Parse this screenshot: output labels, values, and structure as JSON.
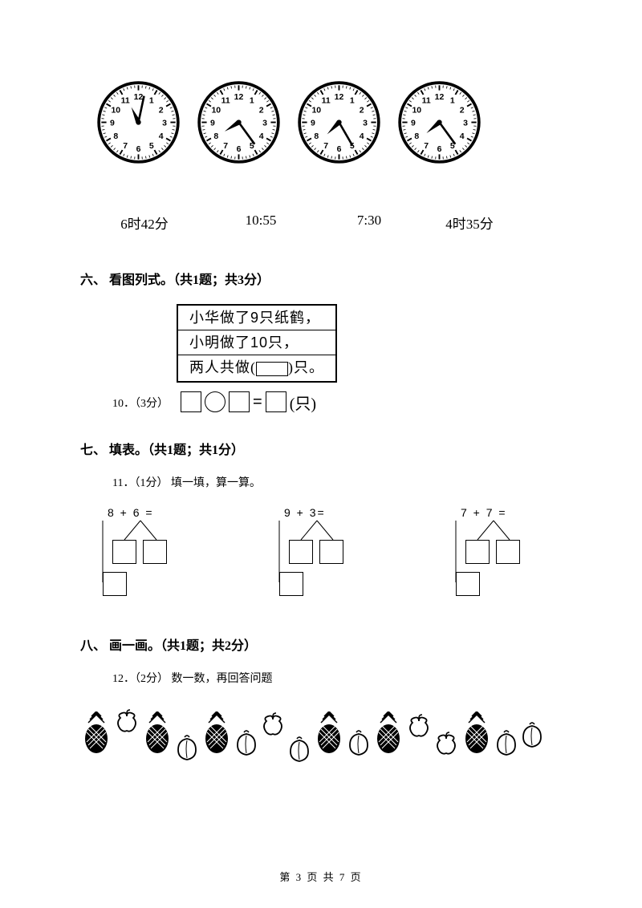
{
  "clocks": {
    "faces": [
      {
        "hour_angle": 335,
        "minute_angle": 12
      },
      {
        "hour_angle": 237,
        "minute_angle": 144
      },
      {
        "hour_angle": 225,
        "minute_angle": 150
      },
      {
        "hour_angle": 230,
        "minute_angle": 144
      }
    ],
    "times": [
      "6时42分",
      "10:55",
      "7:30",
      "4时35分"
    ],
    "time_positions": [
      50,
      160,
      295,
      415
    ],
    "face_bg": "#ffffff",
    "stroke": "#000000",
    "numerals": [
      "12",
      "1",
      "2",
      "3",
      "4",
      "5",
      "6",
      "7",
      "8",
      "9",
      "10",
      "11"
    ]
  },
  "section6": {
    "heading": "六、 看图列式。（共1题；共3分）",
    "q10_label": "10．（3分）",
    "box_lines": {
      "l1_a": "小华做了",
      "l1_b": "只纸鹤，",
      "l1_num": "9",
      "l2_a": "小明做了",
      "l2_b": "只，",
      "l2_num": "10",
      "l3_a": "两人共做(",
      "l3_b": ")只。"
    },
    "eq_tail": "(只)"
  },
  "section7": {
    "heading": "七、 填表。（共1题；共1分）",
    "q11_label": "11．（1分） 填一填，算一算。",
    "items": [
      {
        "expr": "8 + 6 ="
      },
      {
        "expr": "9 + 3="
      },
      {
        "expr": "7 + 7 ="
      }
    ]
  },
  "section8": {
    "heading": "八、 画一画。（共1题；共2分）",
    "q12_label": "12．（2分） 数一数，再回答问题"
  },
  "footer": "第 3 页 共 7 页"
}
